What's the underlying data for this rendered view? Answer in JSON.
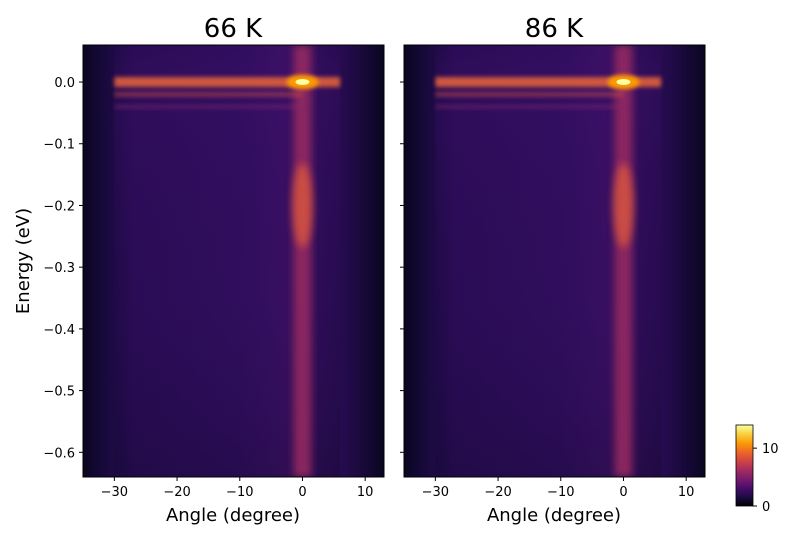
{
  "chart_data": [
    {
      "type": "heatmap",
      "title": "66 K",
      "xlabel": "Angle (degree)",
      "ylabel": "Energy (eV)",
      "xlim": [
        -35,
        13
      ],
      "ylim": [
        -0.64,
        0.06
      ],
      "xticks": [
        -30,
        -20,
        -10,
        0,
        10
      ],
      "yticks": [
        0.0,
        -0.1,
        -0.2,
        -0.3,
        -0.4,
        -0.5,
        -0.6
      ],
      "xtick_labels": [
        "−30",
        "−20",
        "−10",
        "0",
        "10"
      ],
      "ytick_labels": [
        "0.0",
        "−0.1",
        "−0.2",
        "−0.3",
        "−0.4",
        "−0.5",
        "−0.6"
      ],
      "colormap": "inferno",
      "features": {
        "fermi_level_energy": 0.0,
        "band_angle_range": [
          -30,
          6
        ],
        "hot_spot": {
          "angle": 0,
          "energy": 0.0
        },
        "vertical_streak_angle": 0,
        "secondary_max_energy": -0.2
      }
    },
    {
      "type": "heatmap",
      "title": "86 K",
      "xlabel": "Angle (degree)",
      "ylabel": "",
      "xlim": [
        -35,
        13
      ],
      "ylim": [
        -0.64,
        0.06
      ],
      "xticks": [
        -30,
        -20,
        -10,
        0,
        10
      ],
      "yticks": [
        0.0,
        -0.1,
        -0.2,
        -0.3,
        -0.4,
        -0.5,
        -0.6
      ],
      "xtick_labels": [
        "−30",
        "−20",
        "−10",
        "0",
        "10"
      ],
      "colormap": "inferno",
      "features": {
        "fermi_level_energy": 0.0,
        "band_angle_range": [
          -30,
          6
        ],
        "hot_spot": {
          "angle": 0,
          "energy": 0.0
        },
        "vertical_streak_angle": 0,
        "secondary_max_energy": -0.2
      }
    }
  ],
  "colorbar": {
    "ticks": [
      0,
      10
    ],
    "tick_labels": [
      "0",
      "10"
    ],
    "range": [
      0,
      14
    ],
    "colormap": "inferno"
  },
  "colors": {
    "inferno": [
      "#000004",
      "#1b0c41",
      "#4a0c6b",
      "#781c6d",
      "#a52c60",
      "#cf4446",
      "#ed6925",
      "#fb9b06",
      "#f7d13d",
      "#fcffa4"
    ]
  }
}
